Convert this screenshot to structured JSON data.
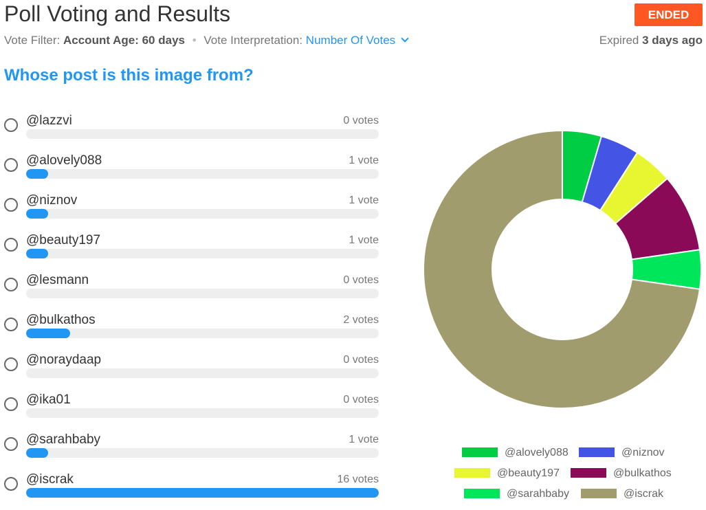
{
  "header": {
    "title": "Poll Voting and Results",
    "status": "ENDED",
    "filter_label": "Vote Filter:",
    "filter_value": "Account Age: 60 days",
    "interp_label": "Vote Interpretation:",
    "interp_value": "Number Of Votes",
    "expired_label": "Expired",
    "expired_value": "3 days ago"
  },
  "poll": {
    "question": "Whose post is this image from?",
    "options": [
      {
        "label": "@lazzvi",
        "count": "0 votes",
        "votes": 0
      },
      {
        "label": "@alovely088",
        "count": "1 vote",
        "votes": 1
      },
      {
        "label": "@niznov",
        "count": "1 vote",
        "votes": 1
      },
      {
        "label": "@beauty197",
        "count": "1 vote",
        "votes": 1
      },
      {
        "label": "@lesmann",
        "count": "0 votes",
        "votes": 0
      },
      {
        "label": "@bulkathos",
        "count": "2 votes",
        "votes": 2
      },
      {
        "label": "@noraydaap",
        "count": "0 votes",
        "votes": 0
      },
      {
        "label": "@ika01",
        "count": "0 votes",
        "votes": 0
      },
      {
        "label": "@sarahbaby",
        "count": "1 vote",
        "votes": 1
      },
      {
        "label": "@iscrak",
        "count": "16 votes",
        "votes": 16
      }
    ]
  },
  "colors": {
    "accent": "#2196f3",
    "ended": "#ff5722",
    "track": "#eeeeee"
  },
  "chart_data": {
    "type": "pie",
    "categories": [
      "@alovely088",
      "@niznov",
      "@beauty197",
      "@bulkathos",
      "@sarahbaby",
      "@iscrak"
    ],
    "values": [
      1,
      1,
      1,
      2,
      1,
      16
    ],
    "colors": [
      "#00cc44",
      "#4455e6",
      "#e8f531",
      "#8b0a57",
      "#00e65a",
      "#a09c6e"
    ],
    "legend_placement": "bottom"
  }
}
